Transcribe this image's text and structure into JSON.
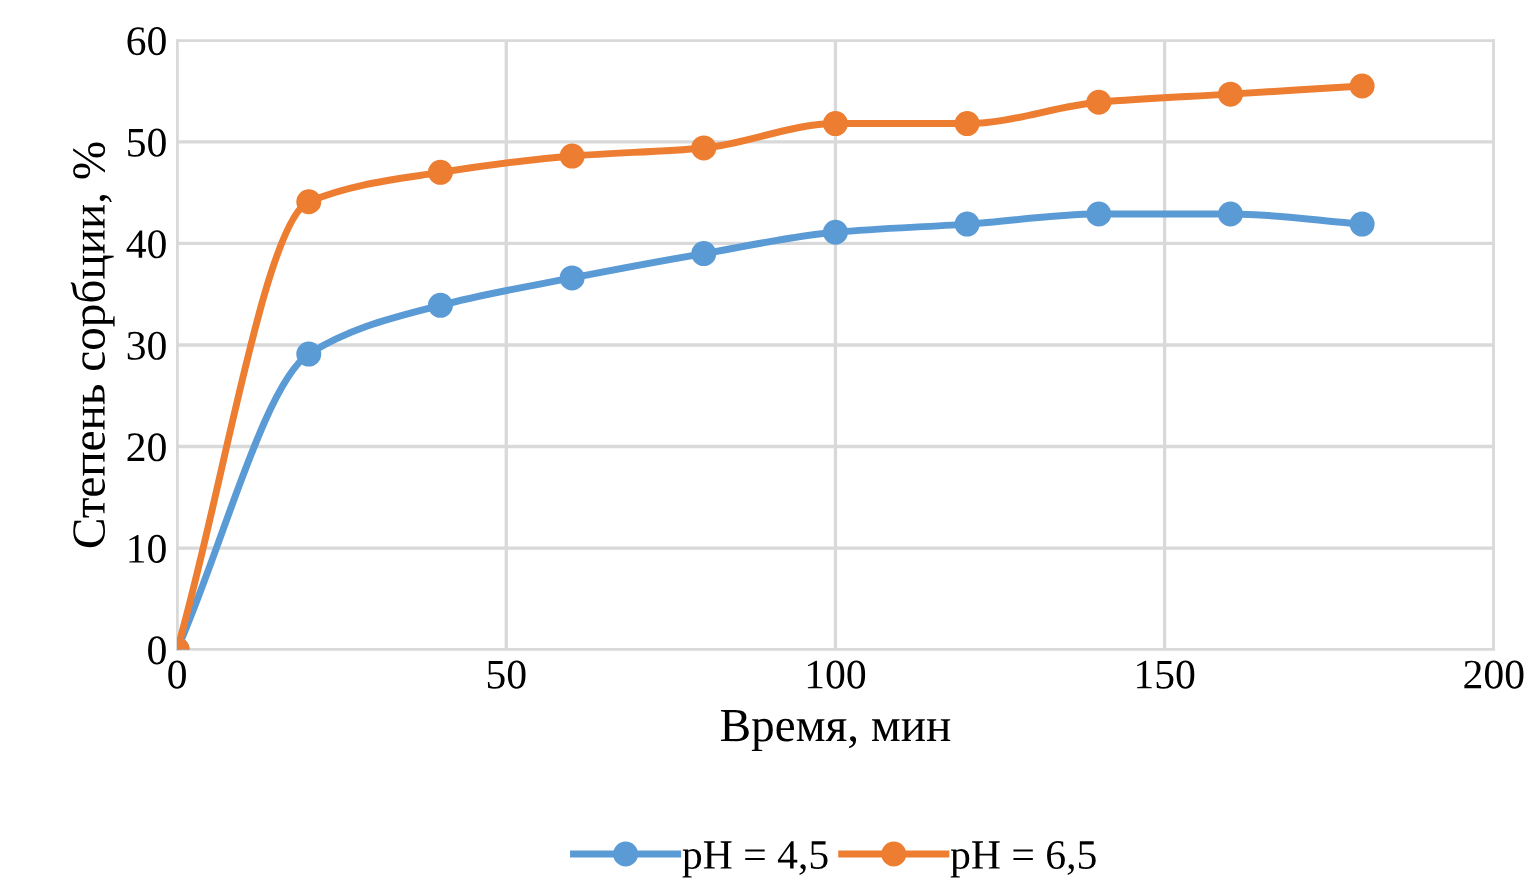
{
  "chart_data": {
    "type": "line",
    "xlabel": "Время, мин",
    "ylabel": "Степень сорбции, %",
    "x": [
      0,
      20,
      40,
      60,
      80,
      100,
      120,
      140,
      160,
      180
    ],
    "series": [
      {
        "name": "pH = 4,5",
        "color": "#5b9bd5",
        "values": [
          0,
          29.1,
          33.9,
          36.6,
          39.0,
          41.1,
          41.9,
          42.9,
          42.9,
          41.9
        ]
      },
      {
        "name": "pH = 6,5",
        "color": "#ed7d31",
        "values": [
          0,
          44.1,
          47.0,
          48.6,
          49.4,
          51.8,
          51.8,
          53.9,
          54.7,
          55.5
        ]
      }
    ],
    "xlim": [
      0,
      200
    ],
    "xticks": [
      0,
      50,
      100,
      150,
      200
    ],
    "ylim": [
      0,
      60
    ],
    "yticks": [
      0,
      10,
      20,
      30,
      40,
      50,
      60
    ],
    "grid": true,
    "legend": "bottom",
    "marker": "circle",
    "line_style": "solid"
  }
}
